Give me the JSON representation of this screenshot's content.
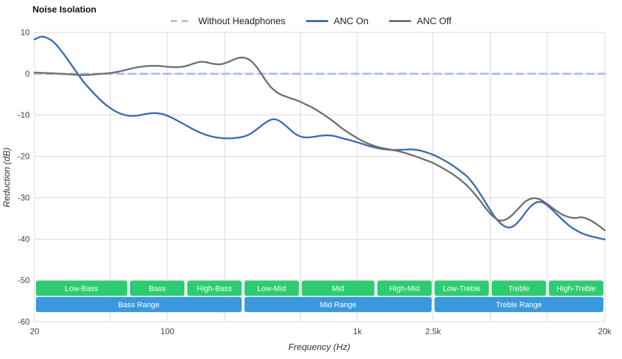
{
  "title": "Noise Isolation",
  "legend": [
    {
      "label": "Without Headphones",
      "color": "#A8BFEC",
      "dashed": true
    },
    {
      "label": "ANC On",
      "color": "#3B6CB0",
      "dashed": false
    },
    {
      "label": "ANC Off",
      "color": "#707070",
      "dashed": false
    }
  ],
  "axes": {
    "x": {
      "title": "Frequency (Hz)",
      "scale": "log",
      "min": 20,
      "max": 20000,
      "gridlines": [
        20,
        50,
        100,
        200,
        500,
        1000,
        2500,
        5000,
        10000,
        20000
      ],
      "ticks": [
        {
          "value": 20,
          "label": "20"
        },
        {
          "value": 100,
          "label": "100"
        },
        {
          "value": 1000,
          "label": "1k"
        },
        {
          "value": 2500,
          "label": "2.5k"
        },
        {
          "value": 20000,
          "label": "20k"
        }
      ]
    },
    "y": {
      "title": "Reduction (dB)",
      "min": -60,
      "max": 10,
      "ticks": [
        10,
        0,
        -10,
        -20,
        -30,
        -40,
        -50,
        -60
      ]
    }
  },
  "bands": {
    "sub": [
      {
        "label": "Low-Bass",
        "from": 20,
        "to": 62.5
      },
      {
        "label": "Bass",
        "from": 62.5,
        "to": 125
      },
      {
        "label": "High-Bass",
        "from": 125,
        "to": 250
      },
      {
        "label": "Low-Mid",
        "from": 250,
        "to": 500
      },
      {
        "label": "Mid",
        "from": 500,
        "to": 1250
      },
      {
        "label": "High-Mid",
        "from": 1250,
        "to": 2500
      },
      {
        "label": "Low-Treble",
        "from": 2500,
        "to": 5000
      },
      {
        "label": "Treble",
        "from": 5000,
        "to": 10000
      },
      {
        "label": "High-Treble",
        "from": 10000,
        "to": 20000
      }
    ],
    "ranges": [
      {
        "label": "Bass Range",
        "from": 20,
        "to": 250
      },
      {
        "label": "Mid Range",
        "from": 250,
        "to": 2500
      },
      {
        "label": "Treble Range",
        "from": 2500,
        "to": 20000
      }
    ]
  },
  "colors": {
    "grid": "#D9D9D9",
    "band_sub": "#2ECC71",
    "band_range": "#3A99DC"
  },
  "chart_data": {
    "type": "line",
    "title": "Noise Isolation",
    "xlabel": "Frequency (Hz)",
    "ylabel": "Reduction (dB)",
    "x_scale": "log",
    "xlim": [
      20,
      20000
    ],
    "ylim": [
      -60,
      10
    ],
    "grid": true,
    "legend_position": "top-center",
    "series": [
      {
        "name": "Without Headphones",
        "points": [
          [
            20,
            0
          ],
          [
            20000,
            0
          ]
        ]
      },
      {
        "name": "ANC On",
        "points": [
          [
            20,
            8.3
          ],
          [
            22,
            9.0
          ],
          [
            25,
            7.8
          ],
          [
            28,
            5.2
          ],
          [
            32,
            1.5
          ],
          [
            36,
            -1.8
          ],
          [
            40,
            -4.2
          ],
          [
            45,
            -6.6
          ],
          [
            50,
            -8.3
          ],
          [
            55,
            -9.4
          ],
          [
            60,
            -10.0
          ],
          [
            65,
            -10.2
          ],
          [
            70,
            -10.1
          ],
          [
            78,
            -9.7
          ],
          [
            85,
            -9.5
          ],
          [
            95,
            -9.8
          ],
          [
            105,
            -10.6
          ],
          [
            120,
            -12.0
          ],
          [
            135,
            -13.3
          ],
          [
            150,
            -14.3
          ],
          [
            165,
            -15.0
          ],
          [
            180,
            -15.4
          ],
          [
            200,
            -15.6
          ],
          [
            220,
            -15.6
          ],
          [
            240,
            -15.4
          ],
          [
            260,
            -15.0
          ],
          [
            280,
            -14.2
          ],
          [
            300,
            -13.2
          ],
          [
            320,
            -12.2
          ],
          [
            340,
            -11.4
          ],
          [
            360,
            -11.0
          ],
          [
            380,
            -11.2
          ],
          [
            400,
            -11.8
          ],
          [
            430,
            -13.0
          ],
          [
            460,
            -14.2
          ],
          [
            490,
            -15.0
          ],
          [
            530,
            -15.4
          ],
          [
            580,
            -15.3
          ],
          [
            640,
            -15.0
          ],
          [
            700,
            -14.9
          ],
          [
            760,
            -15.1
          ],
          [
            830,
            -15.6
          ],
          [
            900,
            -16.0
          ],
          [
            1000,
            -16.6
          ],
          [
            1100,
            -17.2
          ],
          [
            1200,
            -17.7
          ],
          [
            1350,
            -18.2
          ],
          [
            1500,
            -18.4
          ],
          [
            1700,
            -18.4
          ],
          [
            1900,
            -18.3
          ],
          [
            2100,
            -18.5
          ],
          [
            2300,
            -19.0
          ],
          [
            2500,
            -19.6
          ],
          [
            2800,
            -20.7
          ],
          [
            3100,
            -21.9
          ],
          [
            3400,
            -23.2
          ],
          [
            3800,
            -25.0
          ],
          [
            4200,
            -27.5
          ],
          [
            4600,
            -30.3
          ],
          [
            5000,
            -33.0
          ],
          [
            5400,
            -35.2
          ],
          [
            5800,
            -36.6
          ],
          [
            6200,
            -37.2
          ],
          [
            6600,
            -36.9
          ],
          [
            7000,
            -35.9
          ],
          [
            7400,
            -34.5
          ],
          [
            7800,
            -33.1
          ],
          [
            8200,
            -32.0
          ],
          [
            8600,
            -31.3
          ],
          [
            9000,
            -31.0
          ],
          [
            9500,
            -31.2
          ],
          [
            10000,
            -31.9
          ],
          [
            10700,
            -33.1
          ],
          [
            11500,
            -34.5
          ],
          [
            12500,
            -36.1
          ],
          [
            13500,
            -37.3
          ],
          [
            15000,
            -38.5
          ],
          [
            16500,
            -39.2
          ],
          [
            18000,
            -39.6
          ],
          [
            20000,
            -40.1
          ]
        ]
      },
      {
        "name": "ANC Off",
        "points": [
          [
            20,
            0.3
          ],
          [
            25,
            0.1
          ],
          [
            30,
            -0.1
          ],
          [
            35,
            -0.3
          ],
          [
            40,
            -0.2
          ],
          [
            45,
            0.0
          ],
          [
            50,
            0.2
          ],
          [
            55,
            0.5
          ],
          [
            60,
            0.9
          ],
          [
            65,
            1.3
          ],
          [
            70,
            1.6
          ],
          [
            80,
            1.9
          ],
          [
            90,
            1.9
          ],
          [
            100,
            1.7
          ],
          [
            110,
            1.6
          ],
          [
            120,
            1.7
          ],
          [
            130,
            2.1
          ],
          [
            140,
            2.6
          ],
          [
            150,
            2.9
          ],
          [
            160,
            2.8
          ],
          [
            175,
            2.4
          ],
          [
            190,
            2.3
          ],
          [
            205,
            2.7
          ],
          [
            220,
            3.3
          ],
          [
            235,
            3.8
          ],
          [
            250,
            3.9
          ],
          [
            265,
            3.6
          ],
          [
            280,
            2.8
          ],
          [
            295,
            1.6
          ],
          [
            310,
            0.2
          ],
          [
            330,
            -1.7
          ],
          [
            350,
            -3.2
          ],
          [
            370,
            -4.2
          ],
          [
            390,
            -4.9
          ],
          [
            420,
            -5.5
          ],
          [
            450,
            -6.0
          ],
          [
            490,
            -6.6
          ],
          [
            540,
            -7.5
          ],
          [
            590,
            -8.4
          ],
          [
            640,
            -9.4
          ],
          [
            700,
            -10.6
          ],
          [
            760,
            -11.8
          ],
          [
            830,
            -13.2
          ],
          [
            900,
            -14.3
          ],
          [
            1000,
            -15.6
          ],
          [
            1100,
            -16.6
          ],
          [
            1200,
            -17.3
          ],
          [
            1300,
            -17.8
          ],
          [
            1400,
            -18.1
          ],
          [
            1550,
            -18.5
          ],
          [
            1700,
            -18.9
          ],
          [
            1850,
            -19.4
          ],
          [
            2000,
            -19.9
          ],
          [
            2200,
            -20.6
          ],
          [
            2500,
            -21.6
          ],
          [
            2800,
            -22.8
          ],
          [
            3100,
            -24.0
          ],
          [
            3400,
            -25.3
          ],
          [
            3700,
            -26.7
          ],
          [
            4000,
            -28.3
          ],
          [
            4400,
            -30.6
          ],
          [
            4800,
            -32.9
          ],
          [
            5200,
            -34.6
          ],
          [
            5600,
            -35.5
          ],
          [
            6000,
            -35.3
          ],
          [
            6400,
            -34.5
          ],
          [
            6800,
            -33.3
          ],
          [
            7200,
            -32.1
          ],
          [
            7600,
            -31.0
          ],
          [
            8000,
            -30.4
          ],
          [
            8500,
            -30.1
          ],
          [
            9000,
            -30.3
          ],
          [
            9600,
            -31.0
          ],
          [
            10300,
            -32.0
          ],
          [
            11000,
            -33.0
          ],
          [
            12000,
            -34.1
          ],
          [
            13000,
            -34.7
          ],
          [
            14000,
            -34.9
          ],
          [
            15000,
            -34.7
          ],
          [
            16000,
            -35.0
          ],
          [
            17000,
            -35.6
          ],
          [
            18000,
            -36.3
          ],
          [
            19000,
            -37.1
          ],
          [
            20000,
            -37.9
          ]
        ]
      }
    ]
  }
}
